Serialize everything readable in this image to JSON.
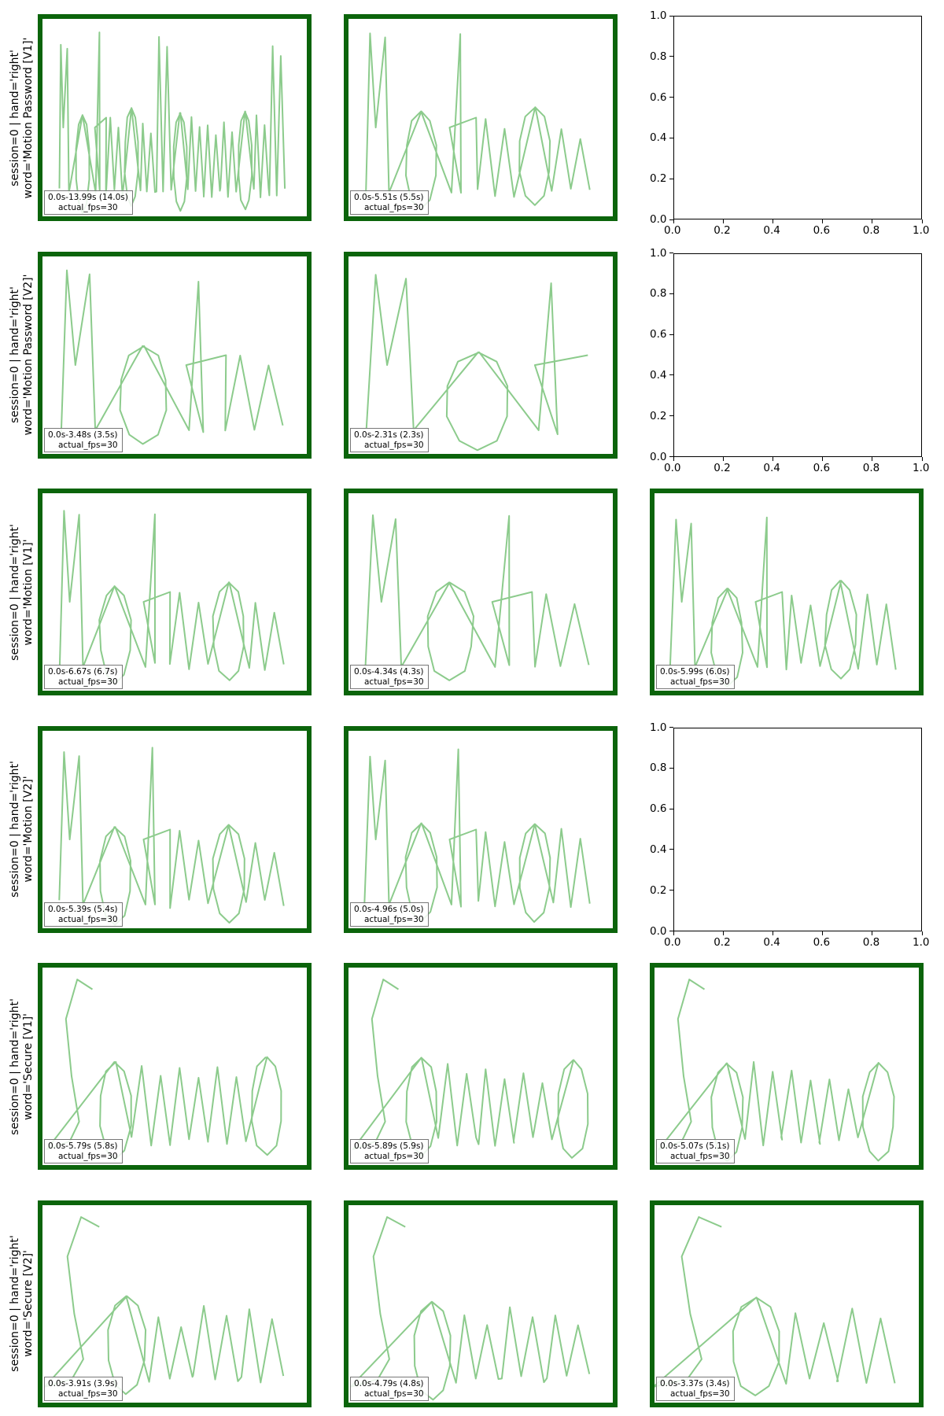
{
  "figure": {
    "background": "#ffffff",
    "panel_border_color": "#0b640b",
    "stroke_color": "#5bb55b",
    "rows": [
      {
        "label_line1": "session=0 | hand='right'",
        "label_line2": "word='Motion Password [V1]'",
        "panels": [
          {
            "type": "trace",
            "glyphs": "MotionPassword",
            "range_label": "0.0s-13.99s (14.0s)",
            "fps_label": "actual_fps=30"
          },
          {
            "type": "trace",
            "glyphs": "Motion",
            "range_label": "0.0s-5.51s (5.5s)",
            "fps_label": "actual_fps=30"
          },
          {
            "type": "empty"
          }
        ]
      },
      {
        "label_line1": "session=0 | hand='right'",
        "label_line2": "word='Motion Password [V2]'",
        "panels": [
          {
            "type": "trace",
            "glyphs": "Moti",
            "range_label": "0.0s-3.48s (3.5s)",
            "fps_label": "actual_fps=30"
          },
          {
            "type": "trace",
            "glyphs": "Mot",
            "range_label": "0.0s-2.31s (2.3s)",
            "fps_label": "actual_fps=30"
          },
          {
            "type": "empty"
          }
        ]
      },
      {
        "label_line1": "session=0 | hand='right'",
        "label_line2": "word='Motion [V1]'",
        "panels": [
          {
            "type": "trace",
            "glyphs": "Motion",
            "range_label": "0.0s-6.67s (6.7s)",
            "fps_label": "actual_fps=30"
          },
          {
            "type": "trace",
            "glyphs": "Moti",
            "range_label": "0.0s-4.34s (4.3s)",
            "fps_label": "actual_fps=30"
          },
          {
            "type": "trace",
            "glyphs": "Motion",
            "range_label": "0.0s-5.99s (6.0s)",
            "fps_label": "actual_fps=30"
          }
        ]
      },
      {
        "label_line1": "session=0 | hand='right'",
        "label_line2": "word='Motion [V2]'",
        "panels": [
          {
            "type": "trace",
            "glyphs": "Motion",
            "range_label": "0.0s-5.39s (5.4s)",
            "fps_label": "actual_fps=30"
          },
          {
            "type": "trace",
            "glyphs": "Motion",
            "range_label": "0.0s-4.96s (5.0s)",
            "fps_label": "actual_fps=30"
          },
          {
            "type": "empty"
          }
        ]
      },
      {
        "label_line1": "session=0 | hand='right'",
        "label_line2": "word='Secure [V1]'",
        "panels": [
          {
            "type": "trace",
            "glyphs": "Secure",
            "range_label": "0.0s-5.79s (5.8s)",
            "fps_label": "actual_fps=30"
          },
          {
            "type": "trace",
            "glyphs": "Secure",
            "range_label": "0.0s-5.89s (5.9s)",
            "fps_label": "actual_fps=30"
          },
          {
            "type": "trace",
            "glyphs": "Secure",
            "range_label": "0.0s-5.07s (5.1s)",
            "fps_label": "actual_fps=30"
          }
        ]
      },
      {
        "label_line1": "session=0 | hand='right'",
        "label_line2": "word='Secure [V2]'",
        "panels": [
          {
            "type": "trace",
            "glyphs": "Secur",
            "range_label": "0.0s-3.91s (3.9s)",
            "fps_label": "actual_fps=30"
          },
          {
            "type": "trace",
            "glyphs": "Secur",
            "range_label": "0.0s-4.79s (4.8s)",
            "fps_label": "actual_fps=30"
          },
          {
            "type": "trace",
            "glyphs": "Secu",
            "range_label": "0.0s-3.37s (3.4s)",
            "fps_label": "actual_fps=30"
          }
        ]
      }
    ]
  },
  "chart_data": {
    "type": "scatter",
    "empty_axes": {
      "xlim": [
        0.0,
        1.0
      ],
      "ylim": [
        0.0,
        1.0
      ],
      "xticks": [
        "0.0",
        "0.2",
        "0.4",
        "0.6",
        "0.8",
        "1.0"
      ],
      "yticks": [
        "0.0",
        "0.2",
        "0.4",
        "0.6",
        "0.8",
        "1.0"
      ],
      "grid": false
    }
  }
}
